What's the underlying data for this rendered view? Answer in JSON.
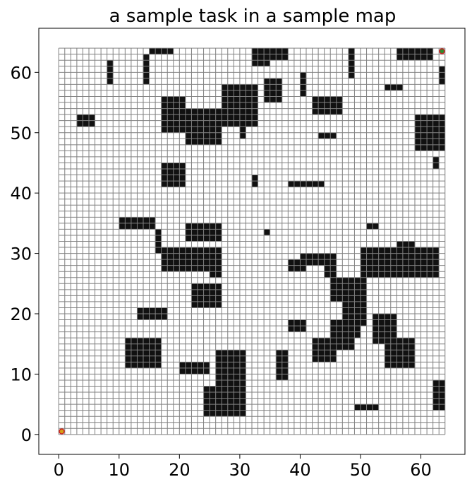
{
  "chart_data": {
    "type": "heatmap",
    "title": "a sample task in a sample map",
    "xlabel": "",
    "ylabel": "",
    "grid_size": 64,
    "xlim": [
      -3.3,
      67.3
    ],
    "ylim": [
      -3.3,
      67.3
    ],
    "x_ticks": [
      0,
      10,
      20,
      30,
      40,
      50,
      60
    ],
    "y_ticks": [
      0,
      10,
      20,
      30,
      40,
      50,
      60
    ],
    "grid": true,
    "colors": {
      "obstacle": "#111111",
      "free": "#ffffff",
      "gridline": "#808080",
      "marker_fill": "#d4a017",
      "marker_edge": "#cc2222",
      "goal_fill": "#2e8b2e"
    },
    "obstacles": [
      [
        15,
        63,
        19,
        64
      ],
      [
        32,
        62,
        38,
        64
      ],
      [
        32,
        61,
        35,
        62
      ],
      [
        56,
        62,
        62,
        64
      ],
      [
        8,
        58,
        9,
        62
      ],
      [
        14,
        58,
        15,
        63
      ],
      [
        40,
        56,
        41,
        60
      ],
      [
        48,
        59,
        49,
        64
      ],
      [
        34,
        55,
        37,
        59
      ],
      [
        27,
        54,
        33,
        58
      ],
      [
        26,
        51,
        33,
        54
      ],
      [
        17,
        52,
        21,
        56
      ],
      [
        17,
        50,
        23,
        52
      ],
      [
        21,
        48,
        27,
        54
      ],
      [
        30,
        49,
        31,
        51
      ],
      [
        3,
        51,
        6,
        53
      ],
      [
        42,
        53,
        47,
        56
      ],
      [
        43,
        49,
        46,
        50
      ],
      [
        59,
        47,
        64,
        53
      ],
      [
        63,
        58,
        64,
        61
      ],
      [
        54,
        57,
        57,
        58
      ],
      [
        62,
        44,
        63,
        46
      ],
      [
        17,
        41,
        21,
        45
      ],
      [
        32,
        41,
        33,
        43
      ],
      [
        38,
        41,
        44,
        42
      ],
      [
        10,
        34,
        16,
        36
      ],
      [
        16,
        32,
        17,
        34
      ],
      [
        21,
        32,
        27,
        35
      ],
      [
        34,
        33,
        35,
        34
      ],
      [
        51,
        34,
        53,
        35
      ],
      [
        16,
        30,
        17,
        32
      ],
      [
        17,
        27,
        25,
        31
      ],
      [
        25,
        26,
        27,
        31
      ],
      [
        38,
        27,
        41,
        29
      ],
      [
        40,
        28,
        46,
        30
      ],
      [
        44,
        26,
        46,
        29
      ],
      [
        50,
        26,
        58,
        31
      ],
      [
        56,
        30,
        59,
        32
      ],
      [
        57,
        26,
        63,
        31
      ],
      [
        22,
        21,
        27,
        25
      ],
      [
        45,
        22,
        51,
        26
      ],
      [
        47,
        18,
        51,
        22
      ],
      [
        45,
        14,
        49,
        19
      ],
      [
        42,
        12,
        46,
        16
      ],
      [
        48,
        16,
        50,
        18
      ],
      [
        38,
        17,
        41,
        19
      ],
      [
        13,
        19,
        18,
        21
      ],
      [
        11,
        11,
        17,
        16
      ],
      [
        20,
        10,
        25,
        12
      ],
      [
        26,
        3,
        31,
        14
      ],
      [
        24,
        3,
        26,
        8
      ],
      [
        36,
        9,
        38,
        14
      ],
      [
        52,
        15,
        56,
        20
      ],
      [
        54,
        11,
        59,
        16
      ],
      [
        62,
        4,
        64,
        9
      ],
      [
        49,
        4,
        53,
        5
      ]
    ],
    "start": [
      0.5,
      0.5
    ],
    "goal": [
      63.5,
      63.5
    ]
  }
}
